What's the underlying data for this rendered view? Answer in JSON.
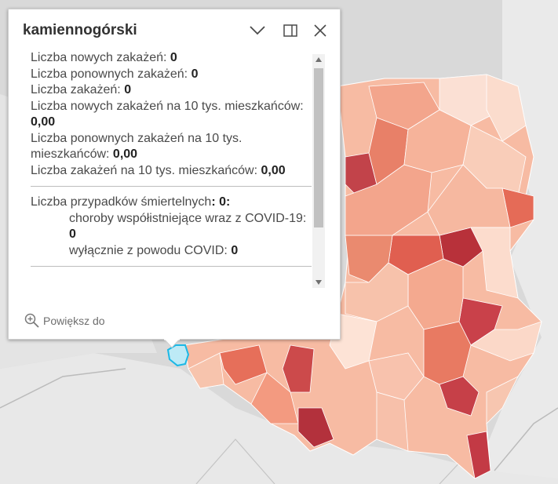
{
  "popup": {
    "title": "kamiennogórski",
    "stats": [
      {
        "label": "Liczba nowych zakażeń: ",
        "value": "0"
      },
      {
        "label": "Liczba ponownych zakażeń: ",
        "value": "0"
      },
      {
        "label": "Liczba zakażeń: ",
        "value": "0"
      },
      {
        "label": "Liczba nowych zakażeń na 10 tys. mieszkańców: ",
        "value": "0,00"
      },
      {
        "label": "Liczba ponownych zakażeń na 10 tys. mieszkańców: ",
        "value": "0,00"
      },
      {
        "label": "Liczba zakażeń na 10 tys. mieszkańców: ",
        "value": "0,00"
      }
    ],
    "deaths": {
      "label": "Liczba przypadków śmiertelnych",
      "value": ": 0:",
      "comorbid_label": "choroby współistniejące wraz z COVID-19: ",
      "comorbid_value": "0",
      "covid_only_label": "wyłącznie z powodu COVID: ",
      "covid_only_value": "0"
    },
    "zoom_label": "Powiększ do",
    "icons": {
      "collapse": "chevron-down-icon",
      "dock": "dock-icon",
      "close": "close-icon",
      "zoom": "zoom-in-icon"
    }
  },
  "colors": {
    "background": "#d8d8d8",
    "land": "#f1f1f1",
    "poland_light": "#fbd8c8",
    "poland_mid": "#f3a58c",
    "poland_dark": "#e0705a",
    "poland_darkest": "#b8313a",
    "highlight": "#1bb8e6"
  }
}
